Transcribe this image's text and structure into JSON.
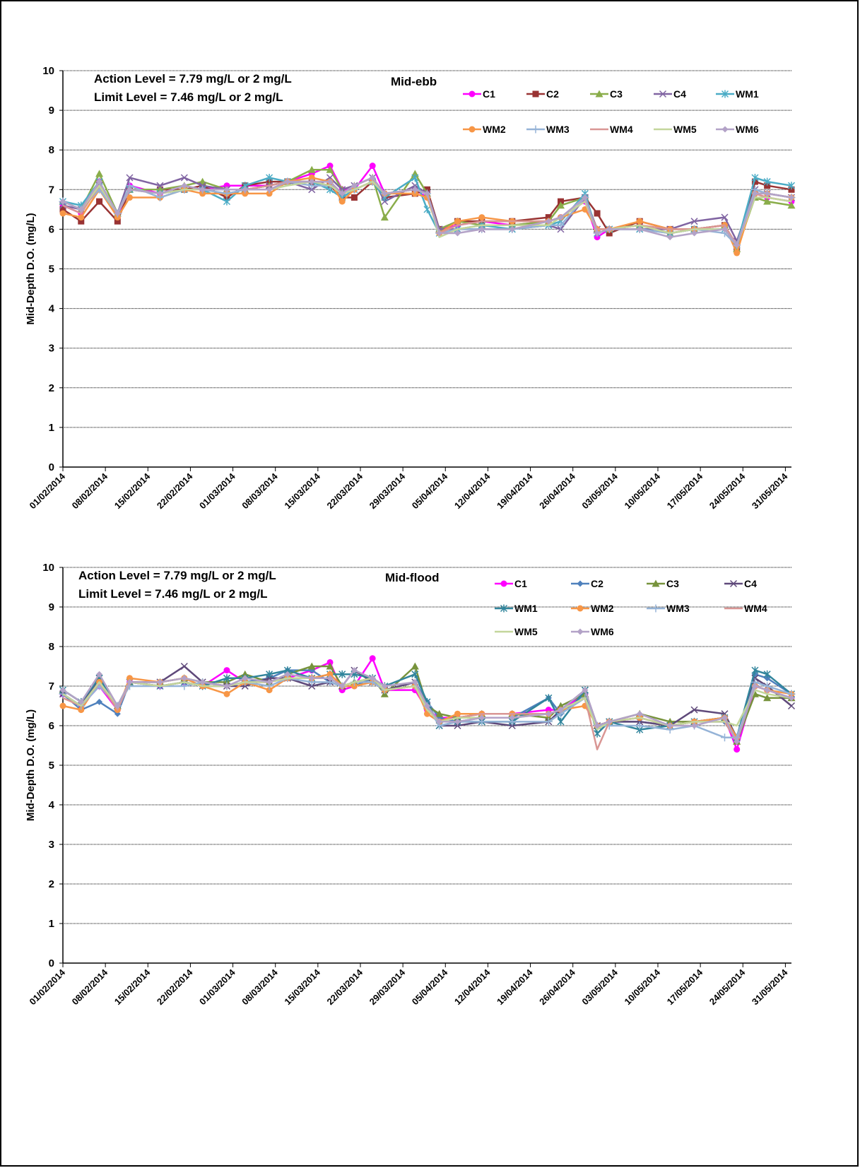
{
  "chart_data": [
    {
      "type": "line",
      "ylabel": "Mid-Depth D.O. (mg/L)",
      "annotations": [
        "Action Level = 7.79 mg/L or 2 mg/L",
        "Limit Level = 7.46 mg/L or 2 mg/L",
        "Mid-ebb"
      ],
      "xlim": [
        "01/02/2014",
        "01/06/2014"
      ],
      "xticks": [
        "01/02/2014",
        "08/02/2014",
        "15/02/2014",
        "22/02/2014",
        "01/03/2014",
        "08/03/2014",
        "15/03/2014",
        "22/03/2014",
        "29/03/2014",
        "05/04/2014",
        "12/04/2014",
        "19/04/2014",
        "26/04/2014",
        "03/05/2014",
        "10/05/2014",
        "17/05/2014",
        "24/05/2014",
        "31/05/2014"
      ],
      "ylim": [
        0,
        10
      ],
      "yticks": [
        0,
        1,
        2,
        3,
        4,
        5,
        6,
        7,
        8,
        9,
        10
      ],
      "grid": true,
      "x": [
        "01/02/2014",
        "04/02/2014",
        "07/02/2014",
        "10/02/2014",
        "12/02/2014",
        "17/02/2014",
        "21/02/2014",
        "24/02/2014",
        "28/02/2014",
        "03/03/2014",
        "07/03/2014",
        "10/03/2014",
        "14/03/2014",
        "17/03/2014",
        "19/03/2014",
        "21/03/2014",
        "24/03/2014",
        "26/03/2014",
        "31/03/2014",
        "02/04/2014",
        "04/04/2014",
        "07/04/2014",
        "11/04/2014",
        "16/04/2014",
        "22/04/2014",
        "24/04/2014",
        "28/04/2014",
        "30/04/2014",
        "02/05/2014",
        "07/05/2014",
        "12/05/2014",
        "16/05/2014",
        "21/05/2014",
        "23/05/2014",
        "26/05/2014",
        "28/05/2014",
        "01/06/2014"
      ],
      "series": [
        {
          "name": "C1",
          "color": "#ff00ff",
          "marker": "circle",
          "values": [
            6.6,
            6.4,
            7.2,
            6.3,
            7.1,
            6.9,
            7.0,
            7.0,
            7.1,
            7.1,
            7.1,
            7.2,
            7.4,
            7.6,
            7.0,
            7.0,
            7.6,
            6.9,
            7.0,
            6.8,
            6.0,
            6.1,
            6.2,
            6.1,
            6.2,
            6.3,
            6.7,
            5.8,
            6.0,
            6.1,
            5.9,
            6.0,
            6.1,
            5.5,
            6.9,
            6.8,
            6.7
          ]
        },
        {
          "name": "C2",
          "color": "#993333",
          "marker": "square",
          "values": [
            6.5,
            6.2,
            6.7,
            6.2,
            7.0,
            7.0,
            7.0,
            7.1,
            6.8,
            7.1,
            7.2,
            7.2,
            7.2,
            7.1,
            6.8,
            6.8,
            7.2,
            6.8,
            6.9,
            7.0,
            6.0,
            6.2,
            6.2,
            6.2,
            6.3,
            6.7,
            6.8,
            6.4,
            5.9,
            6.2,
            6.0,
            6.0,
            6.1,
            5.5,
            7.2,
            7.1,
            7.0
          ]
        },
        {
          "name": "C3",
          "color": "#8aad4a",
          "marker": "triangle",
          "values": [
            6.7,
            6.5,
            7.4,
            6.4,
            7.0,
            7.0,
            7.1,
            7.2,
            7.0,
            7.0,
            7.1,
            7.2,
            7.5,
            7.5,
            7.0,
            7.1,
            7.3,
            6.3,
            7.4,
            6.9,
            6.0,
            6.2,
            6.1,
            6.1,
            6.2,
            6.6,
            6.8,
            6.0,
            6.0,
            6.1,
            5.9,
            6.0,
            6.1,
            5.5,
            6.8,
            6.7,
            6.6
          ]
        },
        {
          "name": "C4",
          "color": "#8064a2",
          "marker": "x",
          "values": [
            6.6,
            6.5,
            7.1,
            6.4,
            7.3,
            7.1,
            7.3,
            7.1,
            7.0,
            7.0,
            7.1,
            7.2,
            7.0,
            7.3,
            7.0,
            7.1,
            7.3,
            6.7,
            7.1,
            6.9,
            6.0,
            6.0,
            6.0,
            6.0,
            6.1,
            6.0,
            6.8,
            6.0,
            6.0,
            6.0,
            6.0,
            6.2,
            6.3,
            5.7,
            7.0,
            6.9,
            6.8
          ]
        },
        {
          "name": "WM1",
          "color": "#4bacc6",
          "marker": "asterisk",
          "values": [
            6.7,
            6.6,
            7.2,
            6.4,
            7.0,
            6.9,
            7.0,
            7.0,
            6.7,
            7.1,
            7.3,
            7.2,
            7.2,
            7.0,
            6.8,
            7.0,
            7.2,
            6.8,
            7.3,
            6.5,
            5.9,
            6.0,
            6.1,
            6.0,
            6.1,
            6.2,
            6.9,
            5.9,
            6.0,
            6.0,
            5.9,
            6.0,
            6.0,
            5.6,
            7.3,
            7.2,
            7.1
          ]
        },
        {
          "name": "WM2",
          "color": "#f79646",
          "marker": "circle",
          "values": [
            6.4,
            6.3,
            7.0,
            6.3,
            6.8,
            6.8,
            7.0,
            6.9,
            6.9,
            6.9,
            6.9,
            7.2,
            7.3,
            7.2,
            6.7,
            7.0,
            7.2,
            6.9,
            6.9,
            6.8,
            5.9,
            6.2,
            6.3,
            6.2,
            6.2,
            6.3,
            6.5,
            6.0,
            6.0,
            6.2,
            6.0,
            6.0,
            6.1,
            5.4,
            6.9,
            6.9,
            6.8
          ]
        },
        {
          "name": "WM3",
          "color": "#95b3d7",
          "marker": "plus",
          "values": [
            6.7,
            6.5,
            7.0,
            6.4,
            7.1,
            6.8,
            7.0,
            7.0,
            6.9,
            7.0,
            7.0,
            7.2,
            7.1,
            7.1,
            6.9,
            7.0,
            7.2,
            6.9,
            7.0,
            6.9,
            5.9,
            6.0,
            6.0,
            6.0,
            6.1,
            6.1,
            6.8,
            5.9,
            6.0,
            6.0,
            5.9,
            6.0,
            5.9,
            5.6,
            7.0,
            6.9,
            6.8
          ]
        },
        {
          "name": "WM4",
          "color": "#d99694",
          "marker": "none",
          "values": [
            6.6,
            6.4,
            7.1,
            6.4,
            7.0,
            6.9,
            7.1,
            7.0,
            7.0,
            7.0,
            7.1,
            7.2,
            7.2,
            7.2,
            6.9,
            7.0,
            7.2,
            6.9,
            7.0,
            6.9,
            5.9,
            6.1,
            6.2,
            6.2,
            6.2,
            6.3,
            6.7,
            6.0,
            6.0,
            6.1,
            6.0,
            6.0,
            6.1,
            5.6,
            6.9,
            6.8,
            6.7
          ]
        },
        {
          "name": "WM5",
          "color": "#c3d69b",
          "marker": "none",
          "values": [
            6.7,
            6.5,
            7.1,
            6.4,
            7.0,
            6.9,
            7.0,
            7.0,
            7.0,
            7.0,
            7.0,
            7.1,
            7.2,
            7.1,
            6.9,
            7.0,
            7.2,
            6.9,
            7.0,
            6.9,
            5.8,
            6.0,
            6.1,
            6.1,
            6.1,
            6.3,
            6.7,
            5.9,
            6.0,
            6.1,
            5.9,
            6.0,
            6.0,
            5.6,
            6.8,
            6.8,
            6.7
          ]
        },
        {
          "name": "WM6",
          "color": "#b3a2c7",
          "marker": "diamond",
          "values": [
            6.7,
            6.5,
            7.2,
            6.4,
            7.0,
            6.9,
            7.1,
            7.0,
            7.0,
            7.0,
            7.0,
            7.2,
            7.2,
            7.2,
            6.9,
            7.1,
            7.3,
            6.9,
            7.0,
            6.9,
            5.9,
            5.9,
            6.0,
            6.0,
            6.2,
            6.3,
            6.8,
            5.9,
            6.0,
            6.0,
            5.8,
            5.9,
            6.0,
            5.6,
            6.9,
            6.9,
            6.8
          ]
        }
      ]
    },
    {
      "type": "line",
      "ylabel": "Mid-Depth D.O. (mg/L)",
      "annotations": [
        "Action Level = 7.79 mg/L or 2 mg/L",
        "Limit Level = 7.46 mg/L or 2 mg/L",
        "Mid-flood"
      ],
      "xlim": [
        "01/02/2014",
        "01/06/2014"
      ],
      "xticks": [
        "01/02/2014",
        "08/02/2014",
        "15/02/2014",
        "22/02/2014",
        "01/03/2014",
        "08/03/2014",
        "15/03/2014",
        "22/03/2014",
        "29/03/2014",
        "05/04/2014",
        "12/04/2014",
        "19/04/2014",
        "26/04/2014",
        "03/05/2014",
        "10/05/2014",
        "17/05/2014",
        "24/05/2014",
        "31/05/2014"
      ],
      "ylim": [
        0,
        10
      ],
      "yticks": [
        0,
        1,
        2,
        3,
        4,
        5,
        6,
        7,
        8,
        9,
        10
      ],
      "grid": true,
      "x": [
        "01/02/2014",
        "04/02/2014",
        "07/02/2014",
        "10/02/2014",
        "12/02/2014",
        "17/02/2014",
        "21/02/2014",
        "24/02/2014",
        "28/02/2014",
        "03/03/2014",
        "07/03/2014",
        "10/03/2014",
        "14/03/2014",
        "17/03/2014",
        "19/03/2014",
        "21/03/2014",
        "24/03/2014",
        "26/03/2014",
        "31/03/2014",
        "02/04/2014",
        "04/04/2014",
        "07/04/2014",
        "11/04/2014",
        "16/04/2014",
        "22/04/2014",
        "24/04/2014",
        "28/04/2014",
        "30/04/2014",
        "02/05/2014",
        "07/05/2014",
        "12/05/2014",
        "16/05/2014",
        "21/05/2014",
        "23/05/2014",
        "26/05/2014",
        "28/05/2014",
        "01/06/2014"
      ],
      "series": [
        {
          "name": "C1",
          "color": "#ff00ff",
          "marker": "circle",
          "values": [
            6.8,
            6.5,
            7.0,
            6.4,
            7.1,
            7.0,
            7.1,
            7.0,
            7.4,
            7.1,
            7.1,
            7.2,
            7.4,
            7.6,
            6.9,
            7.0,
            7.7,
            6.9,
            6.9,
            6.4,
            6.2,
            6.2,
            6.3,
            6.3,
            6.4,
            6.4,
            6.8,
            6.0,
            6.1,
            6.2,
            6.0,
            6.1,
            6.2,
            5.4,
            7.0,
            6.9,
            6.7
          ]
        },
        {
          "name": "C2",
          "color": "#4f81bd",
          "marker": "diamond",
          "values": [
            6.8,
            6.4,
            6.6,
            6.3,
            7.1,
            7.0,
            7.1,
            7.0,
            7.0,
            7.1,
            7.2,
            7.4,
            7.4,
            7.1,
            7.0,
            7.0,
            7.2,
            6.9,
            7.1,
            6.6,
            6.2,
            6.1,
            6.2,
            6.2,
            6.7,
            6.3,
            6.8,
            6.0,
            6.1,
            6.1,
            6.0,
            6.1,
            6.1,
            5.6,
            7.3,
            7.2,
            6.8
          ]
        },
        {
          "name": "C3",
          "color": "#77933c",
          "marker": "triangle",
          "values": [
            6.9,
            6.6,
            7.2,
            6.5,
            7.1,
            7.1,
            7.2,
            7.1,
            7.1,
            7.3,
            7.1,
            7.3,
            7.5,
            7.5,
            7.0,
            7.1,
            7.2,
            6.8,
            7.5,
            6.5,
            6.3,
            6.2,
            6.3,
            6.3,
            6.2,
            6.5,
            6.8,
            6.0,
            6.1,
            6.3,
            6.1,
            6.1,
            6.2,
            5.6,
            6.8,
            6.7,
            6.7
          ]
        },
        {
          "name": "C4",
          "color": "#5f497a",
          "marker": "x",
          "values": [
            6.8,
            6.5,
            7.2,
            6.5,
            7.1,
            7.1,
            7.5,
            7.1,
            7.0,
            7.0,
            7.2,
            7.2,
            7.0,
            7.1,
            7.0,
            7.4,
            7.1,
            6.9,
            7.1,
            6.5,
            6.0,
            6.0,
            6.1,
            6.0,
            6.1,
            6.4,
            6.9,
            6.0,
            6.1,
            6.1,
            6.0,
            6.4,
            6.3,
            5.7,
            7.2,
            7.0,
            6.5
          ]
        },
        {
          "name": "WM1",
          "color": "#31859c",
          "marker": "asterisk",
          "values": [
            6.9,
            6.6,
            7.2,
            6.5,
            7.1,
            7.0,
            7.1,
            7.0,
            7.2,
            7.2,
            7.3,
            7.4,
            7.2,
            7.3,
            7.3,
            7.3,
            7.2,
            7.0,
            7.3,
            6.6,
            6.0,
            6.1,
            6.1,
            6.1,
            6.7,
            6.1,
            6.9,
            5.8,
            6.1,
            5.9,
            6.0,
            6.1,
            6.2,
            5.7,
            7.4,
            7.3,
            6.8
          ]
        },
        {
          "name": "WM2",
          "color": "#f79646",
          "marker": "circle",
          "values": [
            6.5,
            6.4,
            7.1,
            6.4,
            7.2,
            7.1,
            7.2,
            7.0,
            6.8,
            7.1,
            6.9,
            7.2,
            7.2,
            7.3,
            7.0,
            7.0,
            7.1,
            6.9,
            7.0,
            6.3,
            6.1,
            6.3,
            6.3,
            6.3,
            6.3,
            6.4,
            6.5,
            6.0,
            6.1,
            6.2,
            6.0,
            6.1,
            6.2,
            5.7,
            7.0,
            6.9,
            6.8
          ]
        },
        {
          "name": "WM3",
          "color": "#95b3d7",
          "marker": "plus",
          "values": [
            6.8,
            6.5,
            7.0,
            6.5,
            7.0,
            7.0,
            7.0,
            7.1,
            7.0,
            7.1,
            7.0,
            7.2,
            7.1,
            7.1,
            7.0,
            7.1,
            7.1,
            6.9,
            7.0,
            6.5,
            6.0,
            6.1,
            6.1,
            6.1,
            6.1,
            6.3,
            6.7,
            6.0,
            6.0,
            6.0,
            5.9,
            6.0,
            5.7,
            5.7,
            7.1,
            7.0,
            6.8
          ]
        },
        {
          "name": "WM4",
          "color": "#d99694",
          "marker": "none",
          "values": [
            6.7,
            6.5,
            7.1,
            6.4,
            7.1,
            7.0,
            7.1,
            7.0,
            7.0,
            7.1,
            7.1,
            7.2,
            7.2,
            7.2,
            7.0,
            7.1,
            7.2,
            6.9,
            7.0,
            6.4,
            6.1,
            6.2,
            6.3,
            6.3,
            6.3,
            6.4,
            6.7,
            5.4,
            6.1,
            6.2,
            6.0,
            6.1,
            6.1,
            5.6,
            7.0,
            6.9,
            6.7
          ]
        },
        {
          "name": "WM5",
          "color": "#c3d69b",
          "marker": "none",
          "values": [
            6.8,
            6.5,
            7.1,
            6.5,
            7.1,
            7.0,
            7.1,
            7.0,
            7.0,
            7.1,
            7.1,
            7.2,
            7.2,
            7.2,
            7.0,
            7.1,
            7.2,
            6.9,
            7.0,
            6.4,
            6.1,
            6.2,
            6.2,
            6.2,
            6.3,
            6.4,
            6.7,
            5.9,
            6.1,
            6.2,
            6.0,
            6.1,
            6.1,
            6.0,
            6.9,
            6.8,
            6.7
          ]
        },
        {
          "name": "WM6",
          "color": "#b3a2c7",
          "marker": "diamond",
          "values": [
            6.9,
            6.6,
            7.3,
            6.5,
            7.1,
            7.1,
            7.2,
            7.1,
            7.0,
            7.2,
            7.1,
            7.3,
            7.2,
            7.2,
            7.0,
            7.4,
            7.2,
            7.0,
            7.1,
            6.5,
            6.1,
            6.1,
            6.2,
            6.2,
            6.3,
            6.4,
            6.9,
            6.0,
            6.1,
            6.3,
            6.0,
            6.0,
            6.2,
            5.6,
            7.0,
            6.9,
            6.7
          ]
        }
      ]
    }
  ]
}
